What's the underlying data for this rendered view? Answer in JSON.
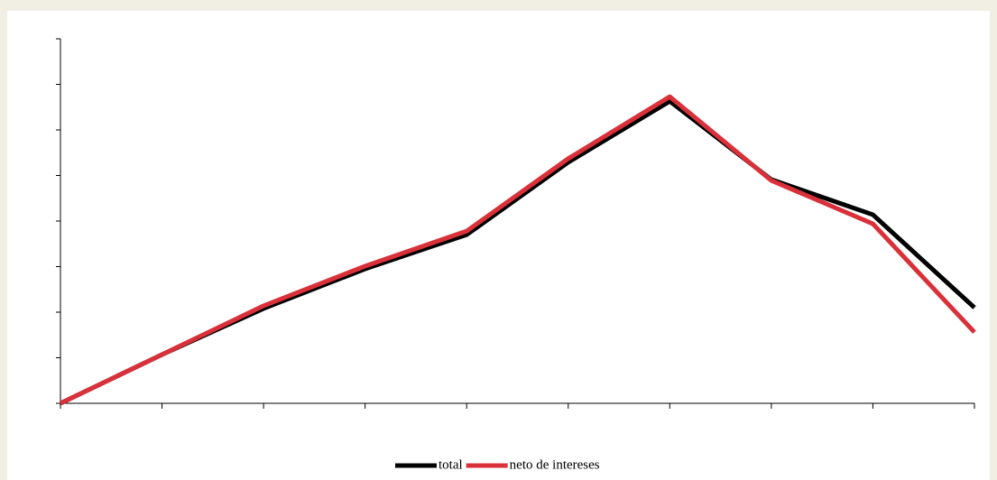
{
  "chart_data": {
    "type": "line",
    "categories": [
      null,
      null,
      null,
      null,
      null,
      null,
      null,
      null,
      null,
      null
    ],
    "series": [
      {
        "name": "total",
        "color": "#000000",
        "values": [
          0,
          1.07,
          2.08,
          2.95,
          3.7,
          5.29,
          6.63,
          4.91,
          4.14,
          2.1
        ]
      },
      {
        "name": "neto de intereses",
        "color": "#d9303a",
        "values": [
          0,
          1.07,
          2.14,
          3.01,
          3.78,
          5.37,
          6.73,
          4.89,
          3.94,
          1.56
        ]
      }
    ],
    "ylim": [
      0,
      8
    ],
    "yticks": [
      0,
      1,
      2,
      3,
      4,
      5,
      6,
      7,
      8
    ],
    "grid": false,
    "legend": "bottom"
  }
}
